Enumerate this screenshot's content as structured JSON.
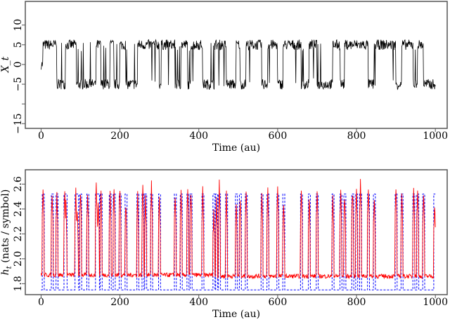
{
  "chart_data": [
    {
      "type": "line",
      "xlabel": "Time (au)",
      "ylabel": "X_t",
      "xlim": [
        -40,
        1030
      ],
      "ylim": [
        -16.2,
        16
      ],
      "xticks": [
        0,
        200,
        400,
        600,
        800,
        1000
      ],
      "yticks": [
        -15,
        -10,
        -5,
        0,
        5,
        10
      ],
      "ytick_labels": [
        "−15",
        "",
        "−5",
        "0",
        "5",
        "10"
      ],
      "grid": false,
      "series_color": "#000000",
      "regimes": [
        [
          0,
          5,
          0
        ],
        [
          5,
          40,
          5
        ],
        [
          40,
          62,
          -5
        ],
        [
          62,
          90,
          5
        ],
        [
          90,
          140,
          -5
        ],
        [
          140,
          152,
          5
        ],
        [
          152,
          175,
          -5
        ],
        [
          175,
          185,
          5
        ],
        [
          185,
          200,
          -5
        ],
        [
          200,
          215,
          5
        ],
        [
          215,
          245,
          -5
        ],
        [
          245,
          300,
          5
        ],
        [
          300,
          305,
          -5
        ],
        [
          305,
          340,
          5
        ],
        [
          340,
          355,
          -5
        ],
        [
          355,
          372,
          5
        ],
        [
          372,
          380,
          -5
        ],
        [
          380,
          410,
          5
        ],
        [
          410,
          440,
          -5
        ],
        [
          440,
          470,
          5
        ],
        [
          470,
          495,
          -5
        ],
        [
          495,
          505,
          5
        ],
        [
          505,
          520,
          -5
        ],
        [
          520,
          560,
          5
        ],
        [
          560,
          575,
          -5
        ],
        [
          575,
          600,
          5
        ],
        [
          600,
          615,
          -5
        ],
        [
          615,
          660,
          5
        ],
        [
          660,
          680,
          -5
        ],
        [
          680,
          700,
          5
        ],
        [
          700,
          740,
          -5
        ],
        [
          740,
          760,
          5
        ],
        [
          760,
          770,
          -5
        ],
        [
          770,
          830,
          5
        ],
        [
          830,
          845,
          -5
        ],
        [
          845,
          900,
          5
        ],
        [
          900,
          915,
          -5
        ],
        [
          915,
          945,
          5
        ],
        [
          945,
          955,
          -5
        ],
        [
          955,
          970,
          5
        ],
        [
          970,
          1000,
          -5
        ]
      ]
    },
    {
      "type": "line",
      "xlabel": "Time (au)",
      "ylabel": "h_t (nats / symbol)",
      "xlim": [
        -40,
        1030
      ],
      "ylim": [
        1.712,
        2.715
      ],
      "xticks": [
        0,
        200,
        400,
        600,
        800,
        1000
      ],
      "yticks": [
        1.8,
        2.0,
        2.2,
        2.4,
        2.6
      ],
      "ytick_labels": [
        "1.8",
        "2.0",
        "2.2",
        "2.4",
        "2.6"
      ],
      "grid": false,
      "series": [
        {
          "style": "solid",
          "color": "#ff0000",
          "baseline": 1.87,
          "spikes": [
            [
              5,
              2.64
            ],
            [
              28,
              2.6
            ],
            [
              40,
              2.57
            ],
            [
              60,
              2.6
            ],
            [
              63,
              2.5
            ],
            [
              88,
              2.6
            ],
            [
              92,
              2.45
            ],
            [
              100,
              2.59
            ],
            [
              118,
              2.59
            ],
            [
              140,
              2.66
            ],
            [
              145,
              2.5
            ],
            [
              152,
              2.57
            ],
            [
              175,
              2.55
            ],
            [
              185,
              2.6
            ],
            [
              200,
              2.63
            ],
            [
              215,
              2.5
            ],
            [
              245,
              2.55
            ],
            [
              258,
              2.6
            ],
            [
              265,
              2.55
            ],
            [
              280,
              2.65
            ],
            [
              300,
              2.56
            ],
            [
              340,
              2.58
            ],
            [
              355,
              2.6
            ],
            [
              372,
              2.62
            ],
            [
              380,
              2.6
            ],
            [
              410,
              2.6
            ],
            [
              438,
              2.45
            ],
            [
              445,
              2.5
            ],
            [
              452,
              2.64
            ],
            [
              470,
              2.55
            ],
            [
              495,
              2.5
            ],
            [
              505,
              2.55
            ],
            [
              520,
              2.6
            ],
            [
              560,
              2.58
            ],
            [
              575,
              2.6
            ],
            [
              600,
              2.6
            ],
            [
              615,
              2.5
            ],
            [
              660,
              2.6
            ],
            [
              680,
              2.55
            ],
            [
              700,
              2.6
            ],
            [
              740,
              2.55
            ],
            [
              760,
              2.6
            ],
            [
              770,
              2.55
            ],
            [
              790,
              2.6
            ],
            [
              800,
              2.6
            ],
            [
              810,
              2.66
            ],
            [
              830,
              2.6
            ],
            [
              845,
              2.55
            ],
            [
              900,
              2.6
            ],
            [
              915,
              2.6
            ],
            [
              945,
              2.58
            ],
            [
              955,
              2.62
            ],
            [
              970,
              2.6
            ],
            [
              998,
              2.5
            ]
          ]
        },
        {
          "style": "dashed",
          "color": "#0000ff",
          "baseline": 1.75,
          "peak": 2.52
        }
      ]
    }
  ]
}
